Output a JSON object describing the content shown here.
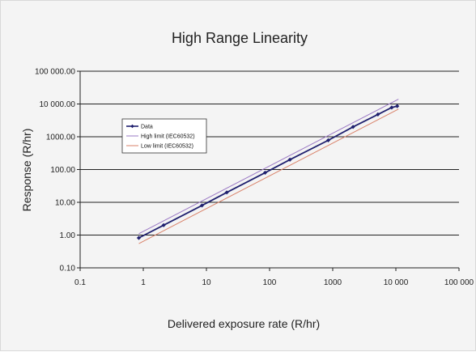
{
  "chart_data": {
    "type": "line",
    "title": "High Range Linearity",
    "xlabel": "Delivered exposure rate (R/hr)",
    "ylabel": "Response (R/hr)",
    "x_scale": "log",
    "y_scale": "log",
    "xlim": [
      0.1,
      100000
    ],
    "ylim": [
      0.1,
      100000
    ],
    "x_ticks": [
      "0.1",
      "1",
      "10",
      "100",
      "1000",
      "10 000",
      "100 000"
    ],
    "y_ticks": [
      "0.10",
      "1.00",
      "10.00",
      "100.00",
      "1000.00",
      "10 000.00",
      "100 000.00"
    ],
    "grid": "horizontal major",
    "legend_position": "upper-left inside plot",
    "series": [
      {
        "name": "Data",
        "color": "#1f1f6e",
        "marker": "diamond",
        "x": [
          0.85,
          2.1,
          8.5,
          21,
          85,
          210,
          850,
          2100,
          5200,
          8600,
          10500
        ],
        "y": [
          0.82,
          2.0,
          8.0,
          20,
          80,
          200,
          780,
          2000,
          4800,
          7800,
          8600
        ]
      },
      {
        "name": "High limit (IEC60532)",
        "color": "#9a78c4",
        "marker": "none",
        "x": [
          0.85,
          11000
        ],
        "y": [
          1.1,
          14000
        ]
      },
      {
        "name": "Low limit (IEC60532)",
        "color": "#d9826a",
        "marker": "none",
        "x": [
          0.85,
          11000
        ],
        "y": [
          0.55,
          7000
        ]
      }
    ]
  }
}
